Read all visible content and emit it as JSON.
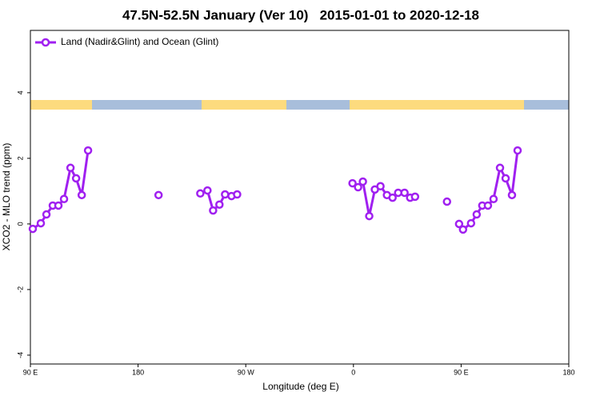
{
  "chart_data": {
    "type": "line",
    "title": "47.5N-52.5N January (Ver 10)   2015-01-01 to 2020-12-18",
    "xlabel": "Longitude (deg E)",
    "ylabel": "XCO2 - MLO trend (ppm)",
    "xlim": [
      90,
      540
    ],
    "ylim": [
      -4.27,
      5.9
    ],
    "xticks": [
      {
        "value": 90,
        "label": "90 E"
      },
      180,
      {
        "value": 270,
        "label": "90 W"
      },
      {
        "value": 360,
        "label": "0"
      },
      {
        "value": 450,
        "label": "90 E"
      },
      {
        "value": 540,
        "label": "180"
      }
    ],
    "yticks": [
      -4,
      -2,
      0,
      2,
      4
    ],
    "legend": "top-left",
    "x": [
      92.0,
      98.7,
      103.4,
      108.7,
      113.4,
      118.1,
      123.5,
      128.2,
      132.9,
      138.2,
      null,
      197.1,
      null,
      232.0,
      238.0,
      242.7,
      248.0,
      252.7,
      258.1,
      262.8,
      null,
      359.2,
      363.9,
      367.9,
      373.2,
      377.9,
      382.6,
      388.0,
      392.7,
      397.4,
      402.7,
      407.4,
      411.5,
      null,
      438.2,
      null,
      448.3,
      451.6,
      458.3,
      463.0,
      467.7,
      472.4,
      477.1,
      482.5,
      487.2,
      492.5,
      497.2
    ],
    "series": [
      {
        "name": "Land (Nadir&Glint) and Ocean (Glint)",
        "color": "#a020f0",
        "values": [
          -0.15,
          0.02,
          0.29,
          0.56,
          0.56,
          0.76,
          1.71,
          1.39,
          0.88,
          2.24,
          null,
          0.88,
          null,
          0.93,
          1.02,
          0.41,
          0.59,
          0.9,
          0.85,
          0.9,
          null,
          1.24,
          1.12,
          1.29,
          0.24,
          1.05,
          1.15,
          0.88,
          0.8,
          0.95,
          0.95,
          0.8,
          0.83,
          null,
          0.68,
          null,
          0.0,
          -0.17,
          0.02,
          0.29,
          0.56,
          0.56,
          0.76,
          1.71,
          1.39,
          0.88,
          2.24
        ]
      }
    ]
  }
}
